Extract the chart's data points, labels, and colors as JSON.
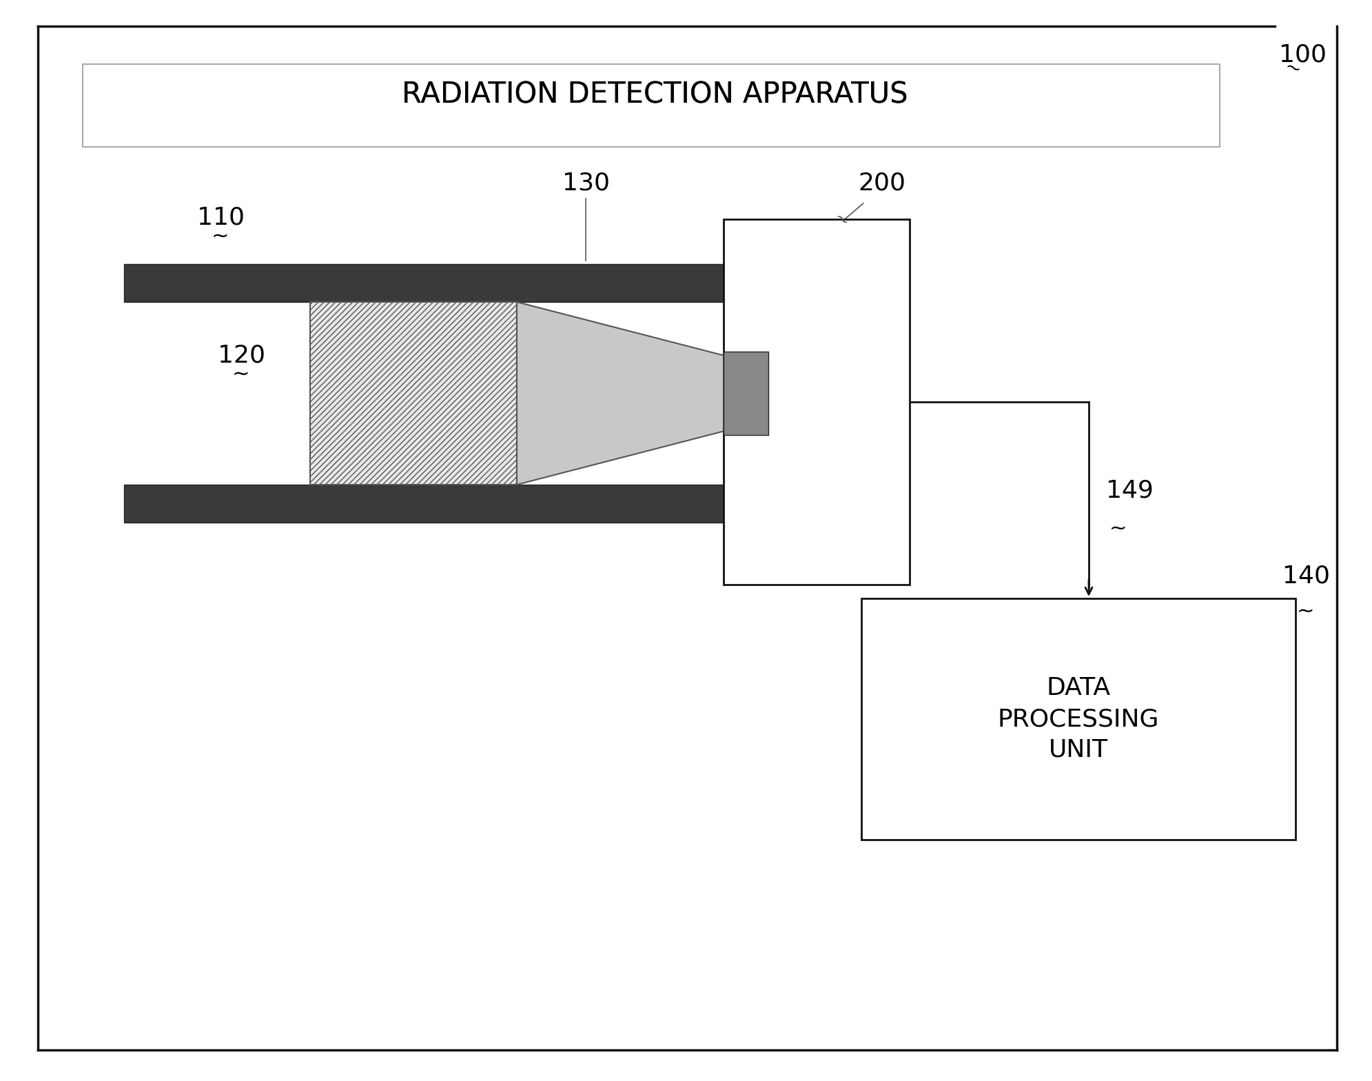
{
  "title": "RADIATION DETECTION APPARATUS",
  "ref_100": "100",
  "ref_110": "110",
  "ref_120": "120",
  "ref_130": "130",
  "ref_140": "140",
  "ref_149": "149",
  "ref_200": "200",
  "dpu_label": "DATA\nPROCESSING\nUNIT",
  "bg_color": "#ffffff",
  "dark_bar_color": "#3a3a3a",
  "scintillator_face": "#e8e8e8",
  "scintillator_hatch": "////",
  "lens_face": "#c8c8c8",
  "sensor_face": "#888888",
  "line_color": "#111111",
  "label_fontsize": 26,
  "title_fontsize": 30,
  "dpu_fontsize": 26,
  "outer_lw": 2.5,
  "inner_lw": 2.0
}
